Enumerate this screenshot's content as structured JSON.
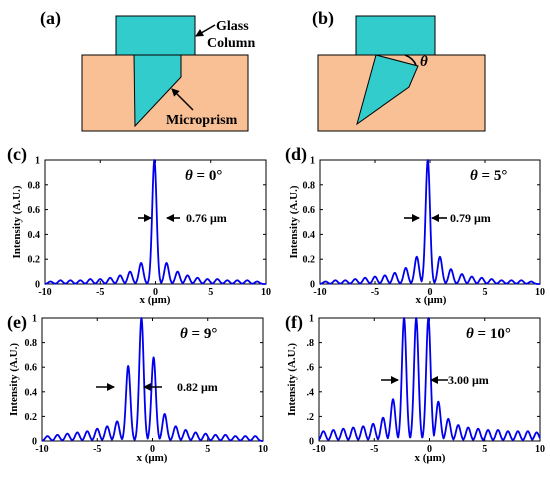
{
  "figure": {
    "schematics": [
      {
        "id": "a",
        "label": "(a)",
        "annotations": [
          "Glass",
          "Column",
          "Microprism"
        ]
      },
      {
        "id": "b",
        "label": "(b)",
        "theta_symbol": "θ"
      }
    ],
    "colors": {
      "substrate": "#f9bf95",
      "glass": "#33cccc",
      "curve": "#0000ee",
      "outline": "#000000"
    }
  },
  "chart_data": [
    {
      "id": "c",
      "type": "line",
      "panel_label": "(c)",
      "angle_label": "= 0°",
      "width_label": "0.76 μm",
      "xlabel": "x (μm)",
      "ylabel": "Intensity (A.U.)",
      "xlim": [
        -10,
        10
      ],
      "ylim": [
        0,
        1
      ],
      "xticks": [
        -10,
        -5,
        0,
        5,
        10
      ],
      "yticks": [
        0,
        0.2,
        0.4,
        0.6,
        0.8,
        1
      ],
      "ytick_labels": [
        "0",
        "0.2",
        "0.4",
        "0.6",
        "0.8",
        "1"
      ],
      "peaks": [
        [
          -9.5,
          0.02
        ],
        [
          -8.6,
          0.03
        ],
        [
          -7.7,
          0.03
        ],
        [
          -6.8,
          0.03
        ],
        [
          -5.9,
          0.04
        ],
        [
          -5.0,
          0.04
        ],
        [
          -4.1,
          0.05
        ],
        [
          -3.2,
          0.07
        ],
        [
          -2.3,
          0.1
        ],
        [
          -1.3,
          0.17
        ],
        [
          -0.1,
          1.0
        ],
        [
          1.0,
          0.17
        ],
        [
          2.0,
          0.1
        ],
        [
          2.9,
          0.07
        ],
        [
          3.8,
          0.05
        ],
        [
          4.7,
          0.04
        ],
        [
          5.6,
          0.04
        ],
        [
          6.5,
          0.03
        ],
        [
          7.4,
          0.03
        ],
        [
          8.3,
          0.03
        ],
        [
          9.2,
          0.02
        ]
      ]
    },
    {
      "id": "d",
      "type": "line",
      "panel_label": "(d)",
      "angle_label": "= 5°",
      "width_label": "0.79 μm",
      "xlabel": "x (μm)",
      "ylabel": "Intensity (A.U.)",
      "xlim": [
        -10,
        10
      ],
      "ylim": [
        0,
        1
      ],
      "xticks": [
        -10,
        -5,
        0,
        5,
        10
      ],
      "yticks": [
        0,
        0.2,
        0.4,
        0.6,
        0.8,
        1
      ],
      "ytick_labels": [
        "0",
        "0.2",
        "0.4",
        "0.6",
        "0.8",
        "1"
      ],
      "peaks": [
        [
          -9.5,
          0.02
        ],
        [
          -8.6,
          0.03
        ],
        [
          -7.7,
          0.03
        ],
        [
          -6.8,
          0.04
        ],
        [
          -5.9,
          0.05
        ],
        [
          -5.0,
          0.06
        ],
        [
          -4.1,
          0.07
        ],
        [
          -3.2,
          0.09
        ],
        [
          -2.2,
          0.13
        ],
        [
          -1.2,
          0.22
        ],
        [
          -0.2,
          1.0
        ],
        [
          0.9,
          0.22
        ],
        [
          1.9,
          0.12
        ],
        [
          2.9,
          0.08
        ],
        [
          3.8,
          0.06
        ],
        [
          4.7,
          0.05
        ],
        [
          5.6,
          0.04
        ],
        [
          6.5,
          0.03
        ],
        [
          7.4,
          0.03
        ],
        [
          8.3,
          0.03
        ],
        [
          9.2,
          0.02
        ]
      ]
    },
    {
      "id": "e",
      "type": "line",
      "panel_label": "(e)",
      "angle_label": "= 9°",
      "width_label": "0.82 μm",
      "xlabel": "x (μm)",
      "ylabel": "Intensity (A.U.)",
      "xlim": [
        -10,
        10
      ],
      "ylim": [
        0,
        1
      ],
      "xticks": [
        -10,
        -5,
        0,
        5,
        10
      ],
      "yticks": [
        0,
        0.2,
        0.4,
        0.6,
        0.8,
        1
      ],
      "ytick_labels": [
        "0",
        "0.2",
        "0.4",
        "0.6",
        "0.8",
        "1"
      ],
      "peaks": [
        [
          -9.5,
          0.04
        ],
        [
          -8.6,
          0.05
        ],
        [
          -7.7,
          0.06
        ],
        [
          -6.8,
          0.07
        ],
        [
          -5.9,
          0.08
        ],
        [
          -5.0,
          0.1
        ],
        [
          -4.1,
          0.12
        ],
        [
          -3.2,
          0.16
        ],
        [
          -2.2,
          0.61
        ],
        [
          -1.0,
          1.0
        ],
        [
          0.1,
          0.68
        ],
        [
          1.1,
          0.22
        ],
        [
          2.1,
          0.12
        ],
        [
          3.0,
          0.09
        ],
        [
          3.9,
          0.07
        ],
        [
          4.8,
          0.06
        ],
        [
          5.7,
          0.05
        ],
        [
          6.6,
          0.05
        ],
        [
          7.5,
          0.04
        ],
        [
          8.4,
          0.04
        ],
        [
          9.3,
          0.04
        ]
      ]
    },
    {
      "id": "f",
      "type": "line",
      "panel_label": "(f)",
      "angle_label": "= 10°",
      "width_label": "3.00 μm",
      "xlabel": "x (μm)",
      "ylabel": "Intensity (A.U.)",
      "xlim": [
        -10,
        10
      ],
      "ylim": [
        0,
        1
      ],
      "xticks": [
        -10,
        -5,
        0,
        5,
        10
      ],
      "yticks": [
        0,
        0.2,
        0.4,
        0.6,
        0.8,
        1
      ],
      "ytick_labels": [
        "0",
        ".2",
        ".4",
        ".6",
        ".8",
        "1"
      ],
      "peaks": [
        [
          -9.6,
          0.08
        ],
        [
          -8.7,
          0.09
        ],
        [
          -7.8,
          0.1
        ],
        [
          -6.9,
          0.11
        ],
        [
          -6.0,
          0.12
        ],
        [
          -5.1,
          0.14
        ],
        [
          -4.2,
          0.19
        ],
        [
          -3.3,
          0.34
        ],
        [
          -2.3,
          1.0
        ],
        [
          -1.2,
          1.0
        ],
        [
          -0.1,
          1.0
        ],
        [
          0.8,
          0.32
        ],
        [
          1.7,
          0.18
        ],
        [
          2.6,
          0.13
        ],
        [
          3.5,
          0.11
        ],
        [
          4.4,
          0.1
        ],
        [
          5.3,
          0.09
        ],
        [
          6.2,
          0.09
        ],
        [
          7.1,
          0.08
        ],
        [
          8.0,
          0.08
        ],
        [
          8.9,
          0.08
        ],
        [
          9.7,
          0.07
        ]
      ]
    }
  ]
}
